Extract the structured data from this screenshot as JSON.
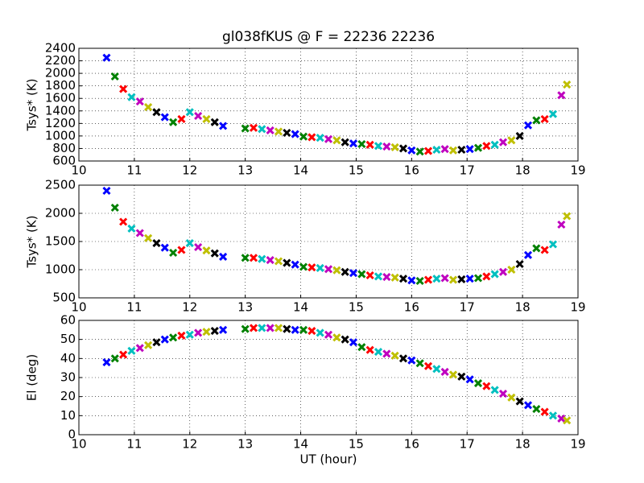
{
  "chart_data": [
    {
      "type": "scatter",
      "title": "gl038fKUS @ F = 22236 22236",
      "y_label": "Tsys* (K)",
      "xlim": [
        10,
        19
      ],
      "xticks": [
        10,
        11,
        12,
        13,
        14,
        15,
        16,
        17,
        18,
        19
      ],
      "ylim": [
        600,
        2400
      ],
      "yticks": [
        600,
        800,
        1000,
        1200,
        1400,
        1600,
        1800,
        2000,
        2200,
        2400
      ],
      "grid": true,
      "colors": [
        "#0000ff",
        "#008000",
        "#ff0000",
        "#00bfbf",
        "#bf00bf",
        "#bfbf00",
        "#000000"
      ],
      "series": [
        {
          "x": [
            10.5,
            10.65,
            10.8,
            10.95,
            11.1,
            11.25,
            11.4,
            11.55,
            11.7,
            11.85,
            12.0,
            12.15,
            12.3,
            12.45,
            12.6,
            13.0,
            13.15,
            13.3,
            13.45,
            13.6,
            13.75,
            13.9,
            14.05,
            14.2,
            14.35,
            14.5,
            14.65,
            14.8,
            14.95,
            15.1,
            15.25,
            15.4,
            15.55,
            15.7,
            15.85,
            16.0,
            16.15,
            16.3,
            16.45,
            16.6,
            16.75,
            16.9,
            17.05,
            17.2,
            17.35,
            17.5,
            17.65,
            17.8,
            17.95,
            18.1,
            18.25,
            18.4,
            18.55,
            18.7,
            18.8
          ],
          "values": [
            2250,
            1950,
            1750,
            1620,
            1550,
            1460,
            1380,
            1300,
            1220,
            1270,
            1380,
            1320,
            1270,
            1220,
            1160,
            1120,
            1130,
            1110,
            1090,
            1070,
            1050,
            1030,
            990,
            980,
            970,
            950,
            930,
            900,
            880,
            870,
            860,
            840,
            830,
            820,
            800,
            770,
            750,
            760,
            780,
            790,
            770,
            780,
            790,
            810,
            840,
            860,
            900,
            930,
            1000,
            1170,
            1250,
            1270,
            1350,
            1650,
            1820
          ]
        }
      ]
    },
    {
      "type": "scatter",
      "y_label": "Tsys* (K)",
      "xlim": [
        10,
        19
      ],
      "xticks": [
        10,
        11,
        12,
        13,
        14,
        15,
        16,
        17,
        18,
        19
      ],
      "ylim": [
        500,
        2500
      ],
      "yticks": [
        500,
        1000,
        1500,
        2000,
        2500
      ],
      "grid": true,
      "colors": [
        "#0000ff",
        "#008000",
        "#ff0000",
        "#00bfbf",
        "#bf00bf",
        "#bfbf00",
        "#000000"
      ],
      "series": [
        {
          "x": [
            10.5,
            10.65,
            10.8,
            10.95,
            11.1,
            11.25,
            11.4,
            11.55,
            11.7,
            11.85,
            12.0,
            12.15,
            12.3,
            12.45,
            12.6,
            13.0,
            13.15,
            13.3,
            13.45,
            13.6,
            13.75,
            13.9,
            14.05,
            14.2,
            14.35,
            14.5,
            14.65,
            14.8,
            14.95,
            15.1,
            15.25,
            15.4,
            15.55,
            15.7,
            15.85,
            16.0,
            16.15,
            16.3,
            16.45,
            16.6,
            16.75,
            16.9,
            17.05,
            17.2,
            17.35,
            17.5,
            17.65,
            17.8,
            17.95,
            18.1,
            18.25,
            18.4,
            18.55,
            18.7,
            18.8
          ],
          "values": [
            2400,
            2100,
            1850,
            1730,
            1650,
            1560,
            1470,
            1390,
            1300,
            1350,
            1470,
            1400,
            1340,
            1290,
            1230,
            1210,
            1210,
            1190,
            1170,
            1150,
            1120,
            1090,
            1050,
            1040,
            1030,
            1010,
            990,
            960,
            940,
            920,
            900,
            880,
            870,
            860,
            840,
            810,
            800,
            820,
            840,
            850,
            820,
            830,
            840,
            850,
            880,
            920,
            960,
            1000,
            1100,
            1260,
            1380,
            1350,
            1450,
            1800,
            1950
          ]
        }
      ]
    },
    {
      "type": "scatter",
      "y_label": "El (deg)",
      "x_label": "UT (hour)",
      "xlim": [
        10,
        19
      ],
      "xticks": [
        10,
        11,
        12,
        13,
        14,
        15,
        16,
        17,
        18,
        19
      ],
      "ylim": [
        0,
        60
      ],
      "yticks": [
        0,
        10,
        20,
        30,
        40,
        50,
        60
      ],
      "grid": true,
      "colors": [
        "#0000ff",
        "#008000",
        "#ff0000",
        "#00bfbf",
        "#bf00bf",
        "#bfbf00",
        "#000000"
      ],
      "series": [
        {
          "x": [
            10.5,
            10.65,
            10.8,
            10.95,
            11.1,
            11.25,
            11.4,
            11.55,
            11.7,
            11.85,
            12.0,
            12.15,
            12.3,
            12.45,
            12.6,
            13.0,
            13.15,
            13.3,
            13.45,
            13.6,
            13.75,
            13.9,
            14.05,
            14.2,
            14.35,
            14.5,
            14.65,
            14.8,
            14.95,
            15.1,
            15.25,
            15.4,
            15.55,
            15.7,
            15.85,
            16.0,
            16.15,
            16.3,
            16.45,
            16.6,
            16.75,
            16.9,
            17.05,
            17.2,
            17.35,
            17.5,
            17.65,
            17.8,
            17.95,
            18.1,
            18.25,
            18.4,
            18.55,
            18.7,
            18.8
          ],
          "values": [
            38,
            40,
            42,
            44,
            45.5,
            47,
            48.5,
            50,
            51,
            52,
            52.5,
            53.5,
            54,
            54.5,
            55,
            55.5,
            56,
            56,
            56,
            56,
            55.5,
            55,
            55,
            54.5,
            53.5,
            52.5,
            51,
            50,
            48.5,
            46,
            44.5,
            43.5,
            42.5,
            41.5,
            40,
            39,
            37.5,
            36,
            34.5,
            33,
            31.5,
            30.5,
            29,
            27,
            25.5,
            23.5,
            21.5,
            19.5,
            17.5,
            15.5,
            13.5,
            12,
            10,
            8.5,
            7.5
          ]
        }
      ]
    }
  ]
}
